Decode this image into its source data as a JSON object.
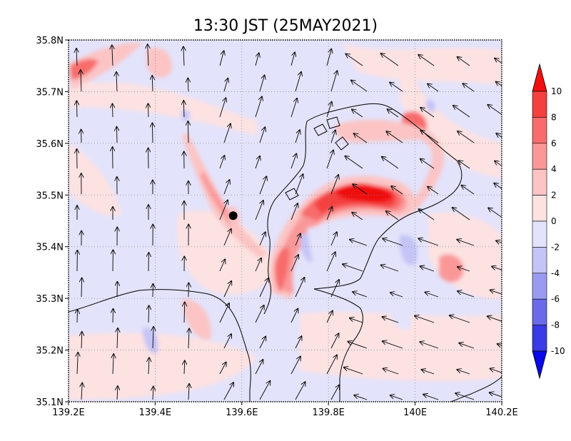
{
  "title": "13:30 JST (25MAY2021)",
  "map": {
    "lon_ticks": [
      "139.2E",
      "139.4E",
      "139.6E",
      "139.8E",
      "140E",
      "140.2E"
    ],
    "lat_ticks": [
      "35.8N",
      "35.7N",
      "35.6N",
      "35.5N",
      "35.4N",
      "35.3N",
      "35.2N",
      "35.1N"
    ],
    "lon_range": [
      139.2,
      140.2
    ],
    "lat_range": [
      35.1,
      35.8
    ],
    "grid": true,
    "marker": {
      "lon": 139.58,
      "lat": 35.46,
      "color": "#000000"
    }
  },
  "colorbar": {
    "labels": [
      "10",
      "8",
      "6",
      "4",
      "2",
      "0",
      "-2",
      "-4",
      "-6",
      "-8",
      "-10"
    ],
    "levels": [
      10,
      8,
      6,
      4,
      2,
      0,
      -2,
      -4,
      -6,
      -8,
      -10
    ],
    "colors": [
      "#f01010",
      "#f54040",
      "#f86c6c",
      "#fa9898",
      "#fcc4c4",
      "#fde2e2",
      "#e3e3fb",
      "#c4c4f6",
      "#9a9af0",
      "#6a6aea",
      "#3a3ae6",
      "#0808e8"
    ]
  },
  "field": {
    "positive_colors": [
      "#fde2e2",
      "#fcc4c4",
      "#fa9898",
      "#f86c6c",
      "#f54040",
      "#f01010"
    ],
    "negative_colors": [
      "#e3e3fb",
      "#c4c4f6",
      "#9a9af0"
    ]
  }
}
